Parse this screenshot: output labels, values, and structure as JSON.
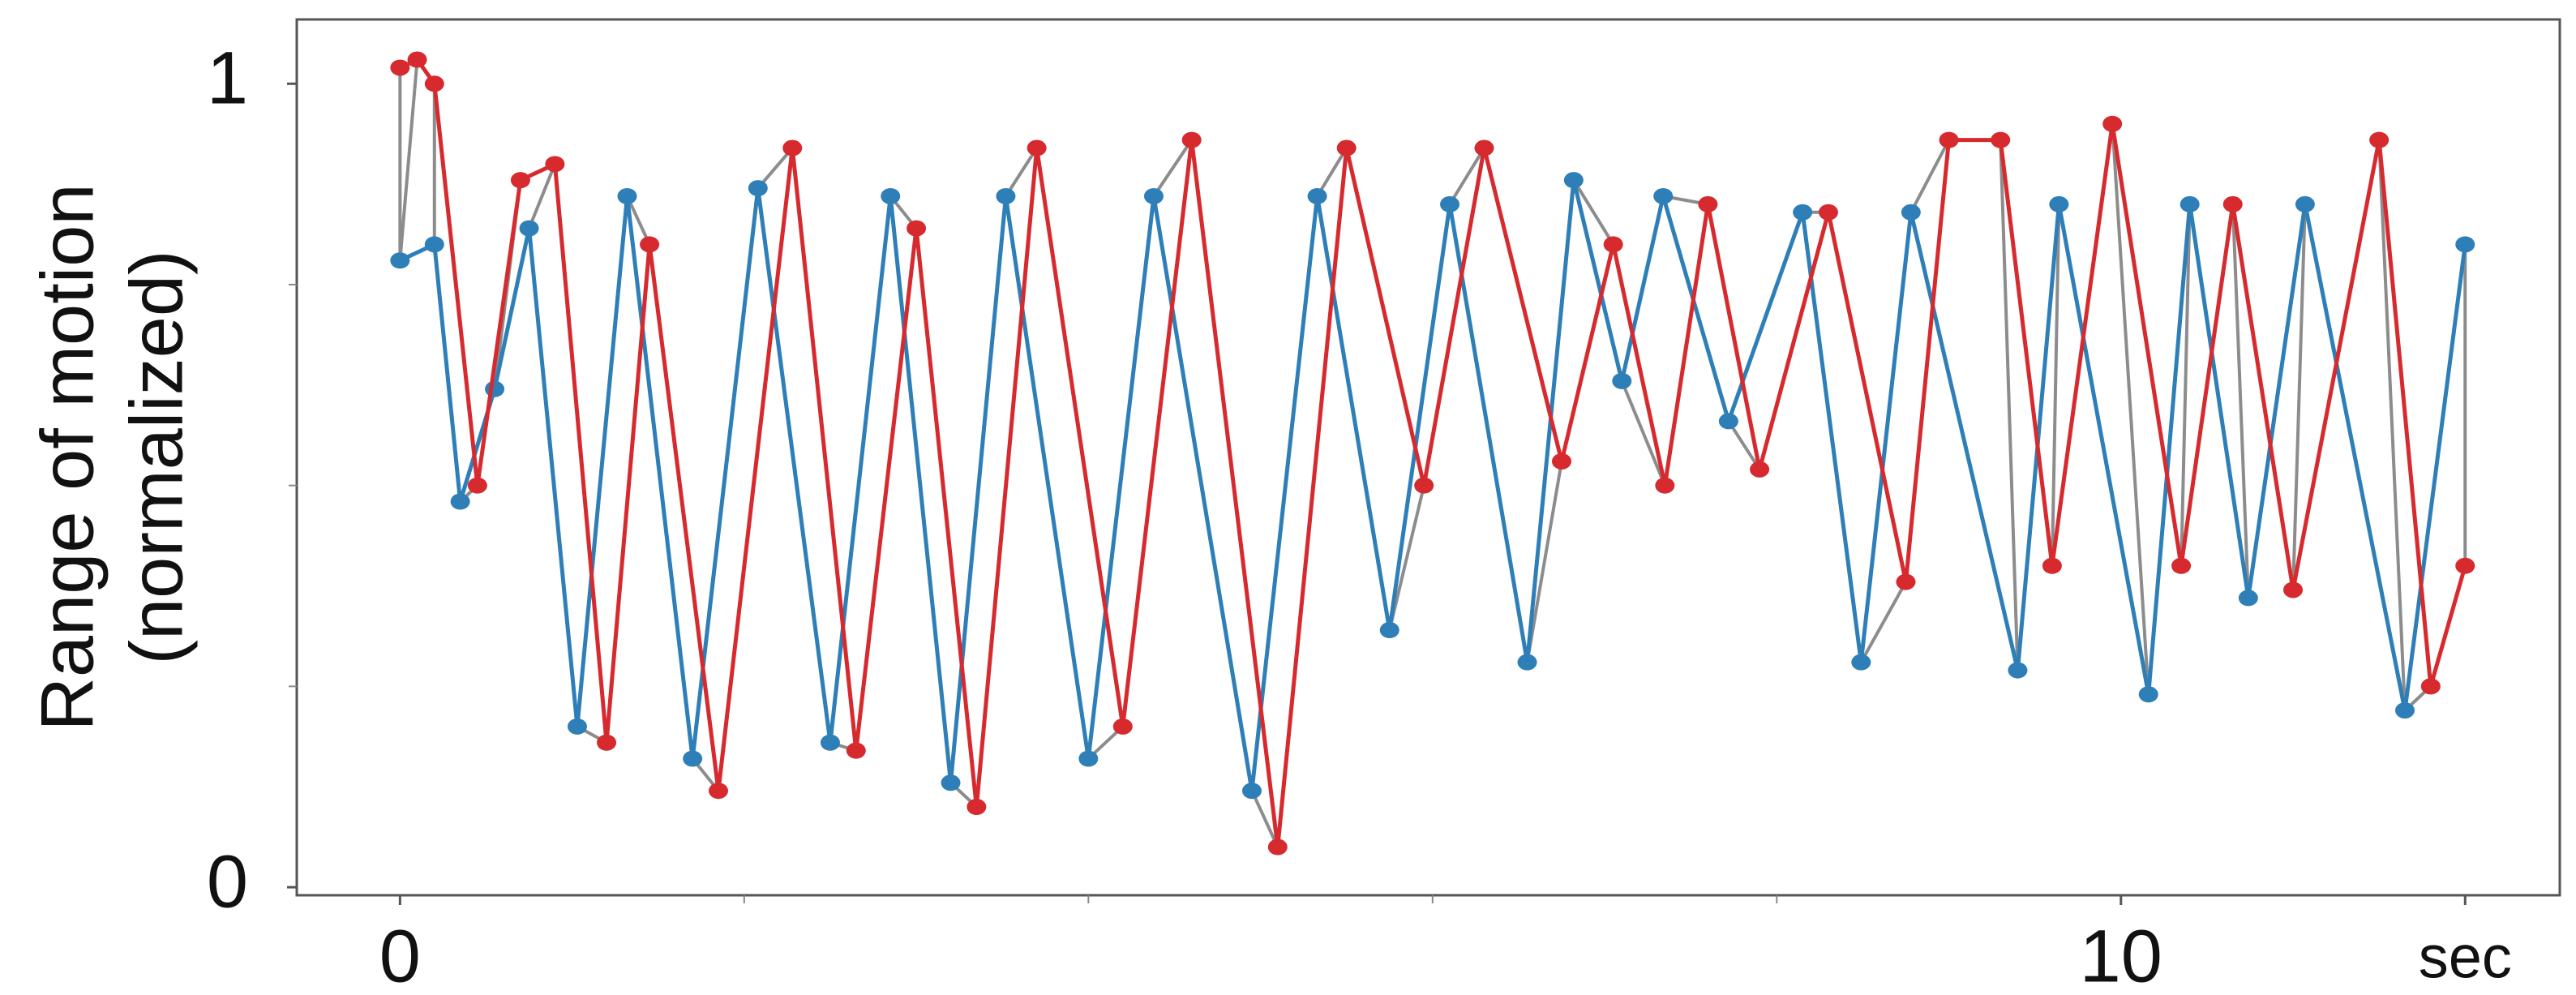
{
  "chart_data": {
    "type": "line",
    "ylabel": [
      "Range of motion",
      "(normalized)"
    ],
    "xlim": [
      -0.6,
      12.55
    ],
    "ylim": [
      -0.01,
      1.08
    ],
    "xticks": [
      0,
      10,
      {
        "value": 12,
        "label": "sec"
      }
    ],
    "xminor_ticks": [
      2,
      4,
      6,
      8
    ],
    "yticks": [
      0,
      1
    ],
    "yminor_ticks": [
      0.25,
      0.5,
      0.75
    ],
    "alignment_color": "#8c8c8c",
    "series": [
      {
        "color": "#2e7fb8",
        "x": [
          0,
          0.2,
          0.35,
          0.55,
          0.75,
          1.03,
          1.32,
          1.7,
          2.08,
          2.5,
          2.85,
          3.2,
          3.52,
          4.0,
          4.38,
          4.95,
          5.33,
          5.75,
          6.1,
          6.55,
          6.82,
          7.1,
          7.34,
          7.72,
          8.15,
          8.49,
          8.78,
          9.4,
          9.64,
          10.16,
          10.4,
          10.74,
          11.07,
          11.65,
          12
        ],
        "values": [
          0.78,
          0.8,
          0.48,
          0.62,
          0.82,
          0.2,
          0.86,
          0.16,
          0.87,
          0.18,
          0.86,
          0.13,
          0.86,
          0.16,
          0.86,
          0.12,
          0.86,
          0.32,
          0.85,
          0.28,
          0.88,
          0.63,
          0.86,
          0.58,
          0.84,
          0.28,
          0.84,
          0.27,
          0.85,
          0.24,
          0.85,
          0.36,
          0.85,
          0.22,
          0.8
        ]
      },
      {
        "color": "#d62a2f",
        "x": [
          0,
          0.1,
          0.2,
          0.45,
          0.7,
          0.9,
          1.2,
          1.45,
          1.85,
          2.28,
          2.65,
          3.0,
          3.35,
          3.7,
          4.2,
          4.6,
          5.1,
          5.5,
          5.95,
          6.3,
          6.75,
          7.05,
          7.35,
          7.6,
          7.9,
          8.3,
          8.75,
          9.0,
          9.3,
          9.6,
          9.95,
          10.35,
          10.65,
          11.0,
          11.5,
          11.8,
          12
        ],
        "values": [
          1.02,
          1.03,
          1.0,
          0.5,
          0.88,
          0.9,
          0.18,
          0.8,
          0.12,
          0.92,
          0.17,
          0.82,
          0.1,
          0.92,
          0.2,
          0.93,
          0.05,
          0.92,
          0.5,
          0.92,
          0.53,
          0.8,
          0.5,
          0.85,
          0.52,
          0.84,
          0.38,
          0.93,
          0.93,
          0.4,
          0.95,
          0.4,
          0.85,
          0.37,
          0.93,
          0.25,
          0.4
        ]
      }
    ],
    "alignment": [
      [
        0,
        0
      ],
      [
        0,
        1
      ],
      [
        1,
        2
      ],
      [
        2,
        3
      ],
      [
        3,
        4
      ],
      [
        4,
        5
      ],
      [
        5,
        6
      ],
      [
        6,
        7
      ],
      [
        7,
        8
      ],
      [
        8,
        9
      ],
      [
        9,
        10
      ],
      [
        10,
        11
      ],
      [
        11,
        12
      ],
      [
        12,
        13
      ],
      [
        13,
        14
      ],
      [
        14,
        15
      ],
      [
        15,
        16
      ],
      [
        16,
        17
      ],
      [
        17,
        18
      ],
      [
        18,
        19
      ],
      [
        19,
        20
      ],
      [
        20,
        21
      ],
      [
        21,
        22
      ],
      [
        22,
        23
      ],
      [
        23,
        24
      ],
      [
        24,
        25
      ],
      [
        25,
        26
      ],
      [
        26,
        27
      ],
      [
        27,
        28
      ],
      [
        28,
        29
      ],
      [
        29,
        30
      ],
      [
        30,
        31
      ],
      [
        31,
        32
      ],
      [
        32,
        33
      ],
      [
        33,
        34
      ],
      [
        33,
        35
      ],
      [
        34,
        36
      ]
    ]
  }
}
